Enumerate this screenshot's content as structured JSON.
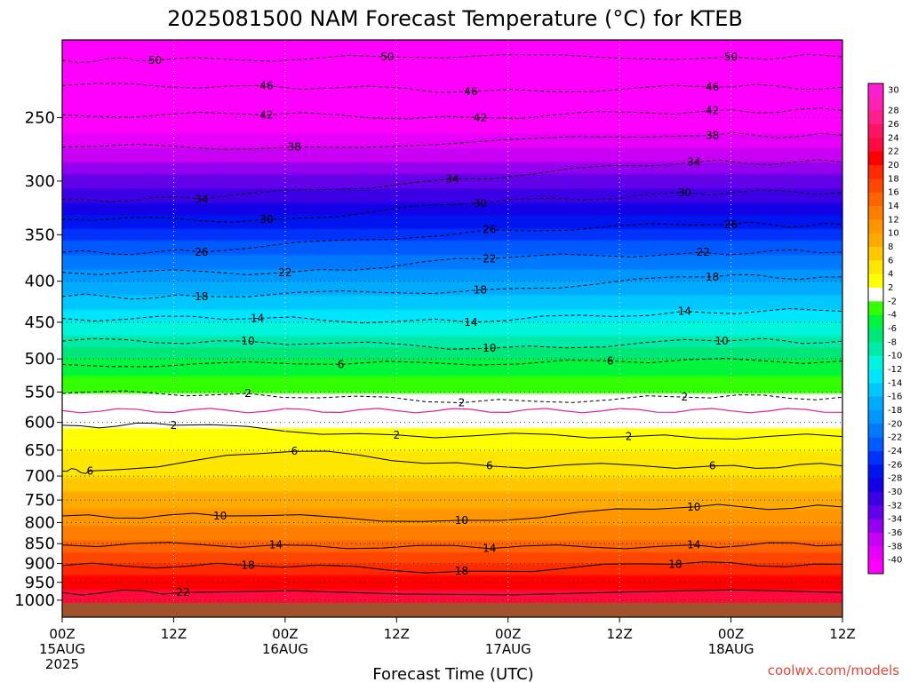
{
  "title": "2025081500 NAM Forecast Temperature (°C) for KTEB",
  "credit": "coolwx.com/models",
  "chart_data": {
    "type": "heatmap",
    "title": "2025081500 NAM Forecast Temperature (°C) for KTEB",
    "xlabel": "Forecast Time (UTC)",
    "ylabel": "",
    "x_range_hours": [
      0,
      84
    ],
    "y_range_hPa": [
      1050,
      200
    ],
    "y_scale": "log",
    "grid": true,
    "y_ticks": [
      250,
      300,
      350,
      400,
      450,
      500,
      550,
      600,
      650,
      700,
      750,
      800,
      850,
      900,
      950,
      1000
    ],
    "y_tick_labels": [
      "250",
      "300",
      "350",
      "400",
      "450",
      "500",
      "550",
      "600",
      "650",
      "700",
      "750",
      "800",
      "850",
      "900",
      "950",
      "1000"
    ],
    "x_ticks": [
      {
        "hour": 0,
        "line1": "00Z",
        "line2": "15AUG",
        "line3": "2025"
      },
      {
        "hour": 12,
        "line1": "12Z",
        "line2": "",
        "line3": ""
      },
      {
        "hour": 24,
        "line1": "00Z",
        "line2": "16AUG",
        "line3": ""
      },
      {
        "hour": 36,
        "line1": "12Z",
        "line2": "",
        "line3": ""
      },
      {
        "hour": 48,
        "line1": "00Z",
        "line2": "17AUG",
        "line3": ""
      },
      {
        "hour": 60,
        "line1": "12Z",
        "line2": "",
        "line3": ""
      },
      {
        "hour": 72,
        "line1": "00Z",
        "line2": "18AUG",
        "line3": ""
      },
      {
        "hour": 84,
        "line1": "12Z",
        "line2": "",
        "line3": ""
      }
    ],
    "temperature_profile": [
      {
        "p": 1015,
        "t": 24
      },
      {
        "p": 950,
        "t": 21
      },
      {
        "p": 900,
        "t": 18
      },
      {
        "p": 850,
        "t": 14.5
      },
      {
        "p": 800,
        "t": 11.5
      },
      {
        "p": 750,
        "t": 9
      },
      {
        "p": 700,
        "t": 6
      },
      {
        "p": 650,
        "t": 4
      },
      {
        "p": 600,
        "t": 1.5
      },
      {
        "p": 580,
        "t": 0
      },
      {
        "p": 550,
        "t": -2
      },
      {
        "p": 500,
        "t": -6
      },
      {
        "p": 450,
        "t": -12
      },
      {
        "p": 400,
        "t": -18
      },
      {
        "p": 350,
        "t": -25
      },
      {
        "p": 300,
        "t": -33
      },
      {
        "p": 250,
        "t": -42
      },
      {
        "p": 200,
        "t": -52
      }
    ],
    "contour_labels": [
      {
        "v": "50",
        "pts": [
          {
            "h": 10,
            "p": 212
          },
          {
            "h": 35,
            "p": 210
          },
          {
            "h": 72,
            "p": 210
          }
        ]
      },
      {
        "v": "46",
        "pts": [
          {
            "h": 22,
            "p": 228
          },
          {
            "h": 44,
            "p": 232
          },
          {
            "h": 70,
            "p": 229
          }
        ]
      },
      {
        "v": "42",
        "pts": [
          {
            "h": 22,
            "p": 248
          },
          {
            "h": 45,
            "p": 250
          },
          {
            "h": 70,
            "p": 245
          }
        ]
      },
      {
        "v": "38",
        "pts": [
          {
            "h": 25,
            "p": 272
          },
          {
            "h": 70,
            "p": 263
          }
        ]
      },
      {
        "v": "34",
        "pts": [
          {
            "h": 15,
            "p": 316
          },
          {
            "h": 42,
            "p": 298
          },
          {
            "h": 68,
            "p": 284
          }
        ]
      },
      {
        "v": "30",
        "pts": [
          {
            "h": 22,
            "p": 335
          },
          {
            "h": 45,
            "p": 320
          },
          {
            "h": 67,
            "p": 310
          }
        ]
      },
      {
        "v": "26",
        "pts": [
          {
            "h": 15,
            "p": 368
          },
          {
            "h": 46,
            "p": 345
          },
          {
            "h": 72,
            "p": 340
          }
        ]
      },
      {
        "v": "22",
        "pts": [
          {
            "h": 24,
            "p": 390
          },
          {
            "h": 46,
            "p": 375
          },
          {
            "h": 69,
            "p": 368
          }
        ]
      },
      {
        "v": "18",
        "pts": [
          {
            "h": 15,
            "p": 418
          },
          {
            "h": 45,
            "p": 410
          },
          {
            "h": 70,
            "p": 395
          }
        ]
      },
      {
        "v": "14",
        "pts": [
          {
            "h": 21,
            "p": 445
          },
          {
            "h": 44,
            "p": 450
          },
          {
            "h": 67,
            "p": 436
          }
        ]
      },
      {
        "v": "10",
        "pts": [
          {
            "h": 20,
            "p": 475
          },
          {
            "h": 46,
            "p": 485
          },
          {
            "h": 71,
            "p": 475
          }
        ]
      },
      {
        "v": "6",
        "pts": [
          {
            "h": 30,
            "p": 508
          },
          {
            "h": 59,
            "p": 503
          }
        ]
      },
      {
        "v": "2",
        "pts": [
          {
            "h": 20,
            "p": 552
          },
          {
            "h": 43,
            "p": 567
          },
          {
            "h": 67,
            "p": 558
          }
        ]
      },
      {
        "v": "2",
        "pts": [
          {
            "h": 12,
            "p": 605
          },
          {
            "h": 36,
            "p": 622
          },
          {
            "h": 61,
            "p": 625
          }
        ]
      },
      {
        "v": "6",
        "pts": [
          {
            "h": 3,
            "p": 690
          },
          {
            "h": 25,
            "p": 652
          },
          {
            "h": 46,
            "p": 680
          },
          {
            "h": 70,
            "p": 680
          }
        ]
      },
      {
        "v": "10",
        "pts": [
          {
            "h": 17,
            "p": 785
          },
          {
            "h": 43,
            "p": 795
          },
          {
            "h": 68,
            "p": 765
          }
        ]
      },
      {
        "v": "14",
        "pts": [
          {
            "h": 23,
            "p": 853
          },
          {
            "h": 46,
            "p": 862
          },
          {
            "h": 68,
            "p": 853
          }
        ]
      },
      {
        "v": "18",
        "pts": [
          {
            "h": 20,
            "p": 905
          },
          {
            "h": 43,
            "p": 920
          },
          {
            "h": 66,
            "p": 902
          }
        ]
      },
      {
        "v": "22",
        "pts": [
          {
            "h": 13,
            "p": 978
          }
        ]
      }
    ],
    "colorbar": {
      "labels": [
        "30",
        "28",
        "26",
        "24",
        "22",
        "20",
        "18",
        "16",
        "14",
        "12",
        "10",
        "8",
        "6",
        "4",
        "2",
        "-2",
        "-4",
        "-6",
        "-8",
        "-10",
        "-12",
        "-14",
        "-16",
        "-18",
        "-20",
        "-22",
        "-24",
        "-26",
        "-28",
        "-30",
        "-32",
        "-34",
        "-36",
        "-38",
        "-40"
      ],
      "colors": [
        "#ff1ed2",
        "#ff20b4",
        "#ff1e8a",
        "#ff1464",
        "#ff0a3c",
        "#ff0000",
        "#ff2800",
        "#ff4600",
        "#ff6400",
        "#ff7d00",
        "#ff9600",
        "#ffaa00",
        "#ffc800",
        "#ffe600",
        "#ffff00",
        "#ffffff",
        "#32ff00",
        "#00f53c",
        "#00e678",
        "#00ebaa",
        "#00f5dc",
        "#00e6ff",
        "#00c8ff",
        "#00aaff",
        "#0096ff",
        "#0078ff",
        "#005aff",
        "#0032ff",
        "#0014f0",
        "#1400e6",
        "#3c00e6",
        "#6400eb",
        "#9600f0",
        "#c800f5",
        "#e600fa",
        "#ff00ff"
      ],
      "zero_gap_color": "#ffffff"
    },
    "ground_color": "#a0522d"
  }
}
